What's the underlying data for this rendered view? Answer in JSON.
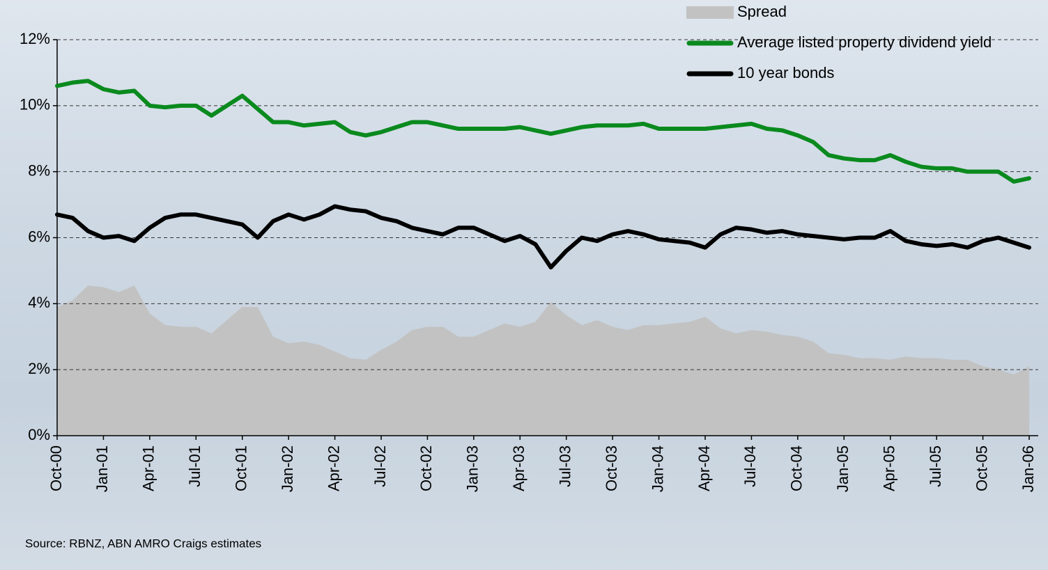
{
  "chart_data": {
    "type": "line",
    "source": "Source:  RBNZ, ABN AMRO Craigs estimates",
    "categories": [
      "Oct-00",
      null,
      null,
      "Jan-01",
      null,
      null,
      "Apr-01",
      null,
      null,
      "Jul-01",
      null,
      null,
      "Oct-01",
      null,
      null,
      "Jan-02",
      null,
      null,
      "Apr-02",
      null,
      null,
      "Jul-02",
      null,
      null,
      "Oct-02",
      null,
      null,
      "Jan-03",
      null,
      null,
      "Apr-03",
      null,
      null,
      "Jul-03",
      null,
      null,
      "Oct-03",
      null,
      null,
      "Jan-04",
      null,
      null,
      "Apr-04",
      null,
      null,
      "Jul-04",
      null,
      null,
      "Oct-04",
      null,
      null,
      "Jan-05",
      null,
      null,
      "Apr-05",
      null,
      null,
      "Jul-05",
      null,
      null,
      "Oct-05",
      null,
      null,
      "Jan-06"
    ],
    "series": [
      {
        "name": "Spread",
        "kind": "area",
        "color": "#c2c2c2",
        "values": [
          3.9,
          4.1,
          4.55,
          4.5,
          4.35,
          4.55,
          3.7,
          3.35,
          3.3,
          3.3,
          3.1,
          3.5,
          3.9,
          3.9,
          3.0,
          2.8,
          2.85,
          2.75,
          2.55,
          2.35,
          2.3,
          2.6,
          2.85,
          3.2,
          3.3,
          3.3,
          3.0,
          3.0,
          3.2,
          3.4,
          3.3,
          3.45,
          4.05,
          3.65,
          3.35,
          3.5,
          3.3,
          3.2,
          3.35,
          3.35,
          3.4,
          3.45,
          3.6,
          3.25,
          3.1,
          3.2,
          3.15,
          3.05,
          3.0,
          2.85,
          2.5,
          2.45,
          2.35,
          2.35,
          2.3,
          2.4,
          2.35,
          2.35,
          2.3,
          2.3,
          2.1,
          2.0,
          1.85,
          2.1
        ]
      },
      {
        "name": "Average listed property dividend yield",
        "kind": "line",
        "color": "#0a8a1e",
        "values": [
          10.6,
          10.7,
          10.75,
          10.5,
          10.4,
          10.45,
          10.0,
          9.95,
          10.0,
          10.0,
          9.7,
          10.0,
          10.3,
          9.9,
          9.5,
          9.5,
          9.4,
          9.45,
          9.5,
          9.2,
          9.1,
          9.2,
          9.35,
          9.5,
          9.5,
          9.4,
          9.3,
          9.3,
          9.3,
          9.3,
          9.35,
          9.25,
          9.15,
          9.25,
          9.35,
          9.4,
          9.4,
          9.4,
          9.45,
          9.3,
          9.3,
          9.3,
          9.3,
          9.35,
          9.4,
          9.45,
          9.3,
          9.25,
          9.1,
          8.9,
          8.5,
          8.4,
          8.35,
          8.35,
          8.5,
          8.3,
          8.15,
          8.1,
          8.1,
          8.0,
          8.0,
          8.0,
          7.7,
          7.8
        ]
      },
      {
        "name": "10 year bonds",
        "kind": "line",
        "color": "#000000",
        "values": [
          6.7,
          6.6,
          6.2,
          6.0,
          6.05,
          5.9,
          6.3,
          6.6,
          6.7,
          6.7,
          6.6,
          6.5,
          6.4,
          6.0,
          6.5,
          6.7,
          6.55,
          6.7,
          6.95,
          6.85,
          6.8,
          6.6,
          6.5,
          6.3,
          6.2,
          6.1,
          6.3,
          6.3,
          6.1,
          5.9,
          6.05,
          5.8,
          5.1,
          5.6,
          6.0,
          5.9,
          6.1,
          6.2,
          6.1,
          5.95,
          5.9,
          5.85,
          5.7,
          6.1,
          6.3,
          6.25,
          6.15,
          6.2,
          6.1,
          6.05,
          6.0,
          5.95,
          6.0,
          6.0,
          6.2,
          5.9,
          5.8,
          5.75,
          5.8,
          5.7,
          5.9,
          6.0,
          5.85,
          5.7
        ]
      }
    ],
    "ylim": [
      0,
      12
    ],
    "yticks": [
      {
        "value": 0,
        "label": "0%"
      },
      {
        "value": 2,
        "label": "2%"
      },
      {
        "value": 4,
        "label": "4%"
      },
      {
        "value": 6,
        "label": "6%"
      },
      {
        "value": 8,
        "label": "8%"
      },
      {
        "value": 10,
        "label": "10%"
      },
      {
        "value": 12,
        "label": "12%"
      }
    ],
    "grid": true
  }
}
